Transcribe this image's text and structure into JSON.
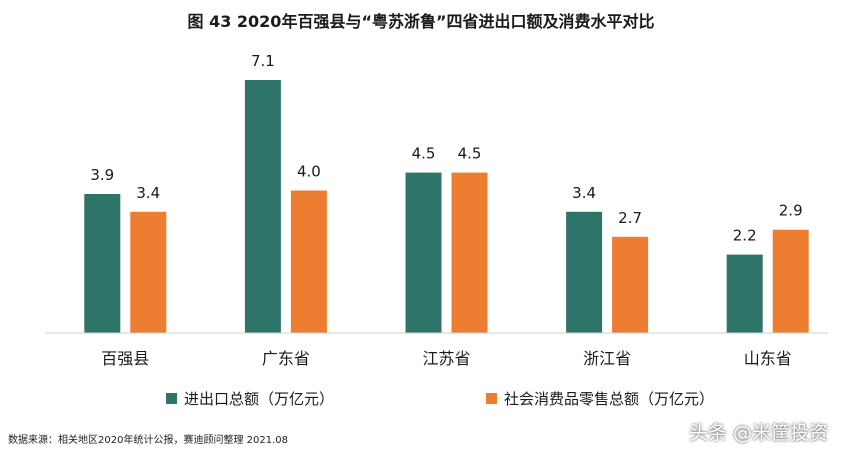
{
  "title": "图 43  2020年百强县与“粤苏浙鲁”四省进出口额及消费水平对比",
  "source": "数据来源：相关地区2020年统计公报，赛迪顾问整理  2021.08",
  "watermark": "头条 @米筐投资",
  "chart_data": {
    "type": "bar",
    "categories": [
      "百强县",
      "广东省",
      "江苏省",
      "浙江省",
      "山东省"
    ],
    "series": [
      {
        "name": "进出口总额（万亿元）",
        "values": [
          3.9,
          7.1,
          4.5,
          3.4,
          2.2
        ],
        "color": "#2E7469"
      },
      {
        "name": "社会消费品零售总额（万亿元）",
        "values": [
          3.4,
          4.0,
          4.5,
          2.7,
          2.9
        ],
        "color": "#ED7D31"
      }
    ],
    "title": "图 43  2020年百强县与“粤苏浙鲁”四省进出口额及消费水平对比",
    "xlabel": "",
    "ylabel": "",
    "ylim": [
      0,
      7.1
    ],
    "grid": false,
    "legend": "bottom"
  }
}
